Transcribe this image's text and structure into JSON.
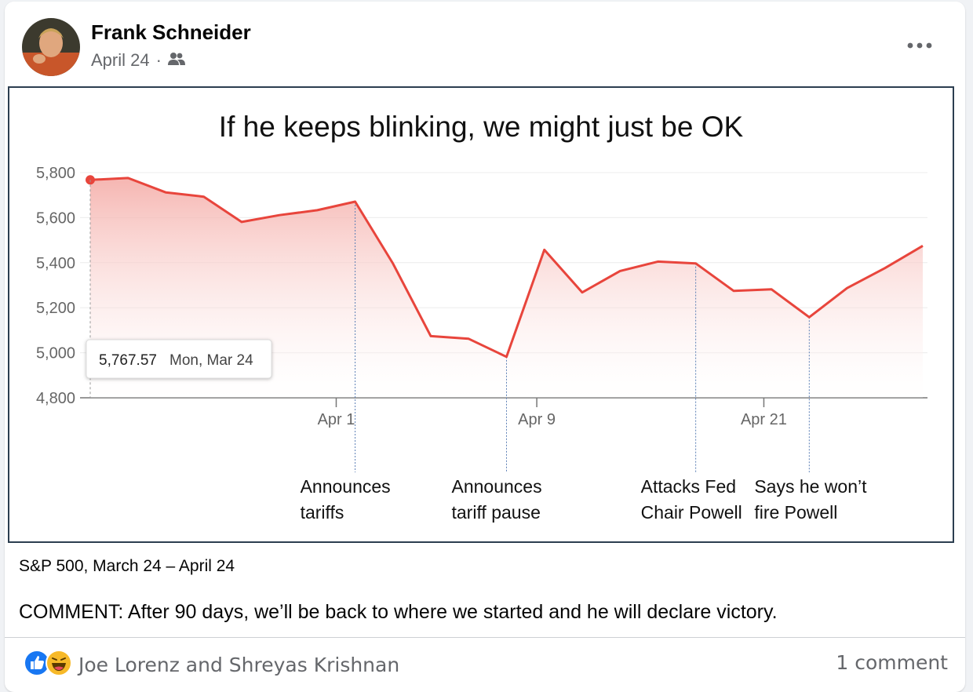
{
  "post": {
    "author": "Frank Schneider",
    "date": "April 24",
    "separator": "·",
    "privacy_icon": "friends-icon",
    "more_icon": "more-options-icon",
    "caption": "S&P 500, March 24 – April 24",
    "comment": "COMMENT: After 90 days, we’ll be back to where we started and he will declare victory."
  },
  "footer": {
    "reaction_icons": [
      "like-icon",
      "haha-icon"
    ],
    "reaction_names": "Joe Lorenz and Shreyas Krishnan",
    "comment_count": "1 comment"
  },
  "colors": {
    "line": "#e8453c",
    "fill": "#f8c9c6",
    "like": "#1877f2",
    "haha": "#f7b928",
    "annotation": "#5b7fb5"
  },
  "chart_data": {
    "type": "area",
    "title": "If he keeps blinking, we might just be OK",
    "y_ticks": [
      "5,800",
      "5,600",
      "5,400",
      "5,200",
      "5,000",
      "4,800"
    ],
    "ylim": [
      4800,
      5800
    ],
    "x_ticks": [
      {
        "label": "Apr 1",
        "index": 6.5
      },
      {
        "label": "Apr 9",
        "index": 11.8
      },
      {
        "label": "Apr 21",
        "index": 17.8
      }
    ],
    "grid": true,
    "values": [
      5767.57,
      5776,
      5712,
      5693,
      5581,
      5611,
      5633,
      5671,
      5396,
      5074,
      5062,
      4982,
      5457,
      5268,
      5363,
      5405,
      5397,
      5275,
      5282,
      5158,
      5287,
      5376,
      5475
    ],
    "tooltip": {
      "value": "5,767.57",
      "date": "Mon, Mar 24"
    },
    "annotations": [
      {
        "index": 7,
        "lines": [
          "Announces",
          "tariffs"
        ]
      },
      {
        "index": 11,
        "lines": [
          "Announces",
          "tariff pause"
        ]
      },
      {
        "index": 16,
        "lines": [
          "Attacks Fed",
          "Chair Powell"
        ]
      },
      {
        "index": 19,
        "lines": [
          "Says he won’t",
          "fire Powell"
        ]
      }
    ]
  }
}
